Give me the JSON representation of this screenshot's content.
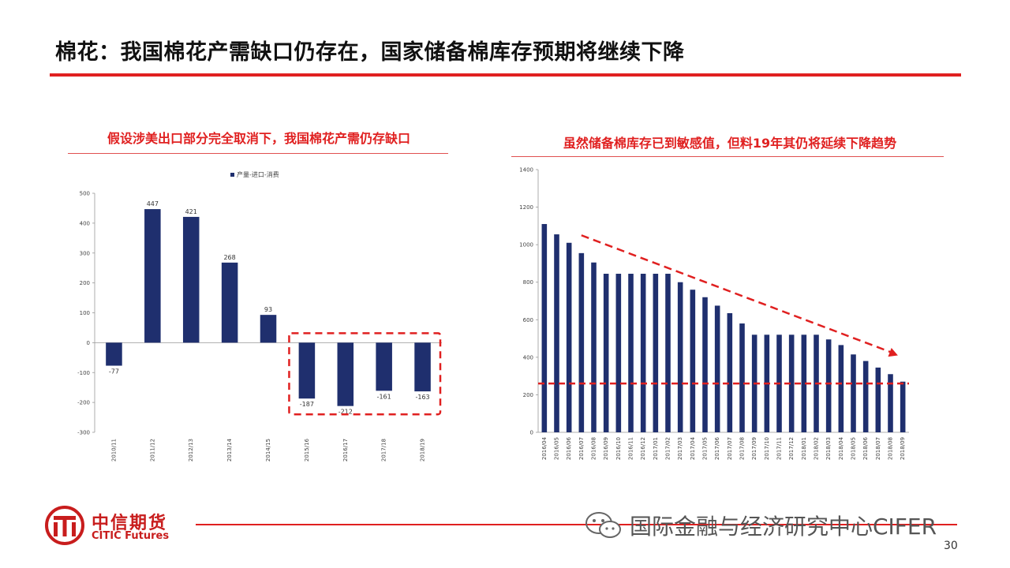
{
  "slide": {
    "title": "棉花：我国棉花产需缺口仍存在，国家储备棉库存预期将继续下降",
    "page_number": "30",
    "title_color": "#111111",
    "accent_color": "#e02020"
  },
  "footer": {
    "logo_cn": "中信期货",
    "logo_en": "CITIC Futures",
    "watermark": "国际金融与经济研究中心CIFER",
    "logo_icon": "citic-logo-icon",
    "watermark_icon": "wechat-icon"
  },
  "chart_data": [
    {
      "type": "bar",
      "title": "假设涉美出口部分完全取消下，我国棉花产需仍存缺口",
      "title_color": "#e02020",
      "legend": [
        "产量-进口-消费"
      ],
      "legend_placement": "top",
      "categories": [
        "2010/11",
        "2011/12",
        "2012/13",
        "2013/14",
        "2014/15",
        "2015/16",
        "2016/17",
        "2017/18",
        "2018/19"
      ],
      "values": [
        -77,
        447,
        421,
        268,
        93,
        -187,
        -212,
        -161,
        -163
      ],
      "data_labels": [
        "-77",
        "447",
        "421",
        "268",
        "93",
        "-187",
        "-212",
        "-161",
        "-163"
      ],
      "ylim": [
        -300,
        500
      ],
      "yticks": [
        "500",
        "400",
        "300",
        "200",
        "100",
        "0",
        "-100",
        "-200",
        "-300"
      ],
      "bar_color": "#1f2f6e",
      "highlight_box": {
        "from_category": "2015/16",
        "to_category": "2018/19",
        "color": "#e02020"
      },
      "grid": false
    },
    {
      "type": "bar",
      "title": "虽然储备棉库存已到敏感值，但料19年其仍将延续下降趋势",
      "title_color": "#e02020",
      "categories": [
        "2016/04",
        "2016/05",
        "2016/06",
        "2016/07",
        "2016/08",
        "2016/09",
        "2016/10",
        "2016/11",
        "2016/12",
        "2017/01",
        "2017/02",
        "2017/03",
        "2017/04",
        "2017/05",
        "2017/06",
        "2017/07",
        "2017/08",
        "2017/09",
        "2017/10",
        "2017/11",
        "2017/12",
        "2018/01",
        "2018/02",
        "2018/03",
        "2018/04",
        "2018/05",
        "2018/06",
        "2018/07",
        "2018/08",
        "2018/09"
      ],
      "values": [
        1110,
        1055,
        1010,
        955,
        905,
        845,
        845,
        845,
        845,
        845,
        845,
        800,
        760,
        720,
        675,
        635,
        580,
        520,
        520,
        520,
        520,
        520,
        520,
        495,
        465,
        415,
        380,
        345,
        310,
        270
      ],
      "ylim": [
        0,
        1400
      ],
      "yticks": [
        "1400",
        "1200",
        "1000",
        "800",
        "600",
        "400",
        "200",
        "0"
      ],
      "bar_color": "#1f2f6e",
      "trend_arrow": {
        "from_category": "2016/07",
        "to_category": "2018/08",
        "from_value": 1050,
        "to_value": 410,
        "color": "#e02020"
      },
      "threshold_line": {
        "value": 260,
        "color": "#e02020"
      },
      "grid": false
    }
  ]
}
